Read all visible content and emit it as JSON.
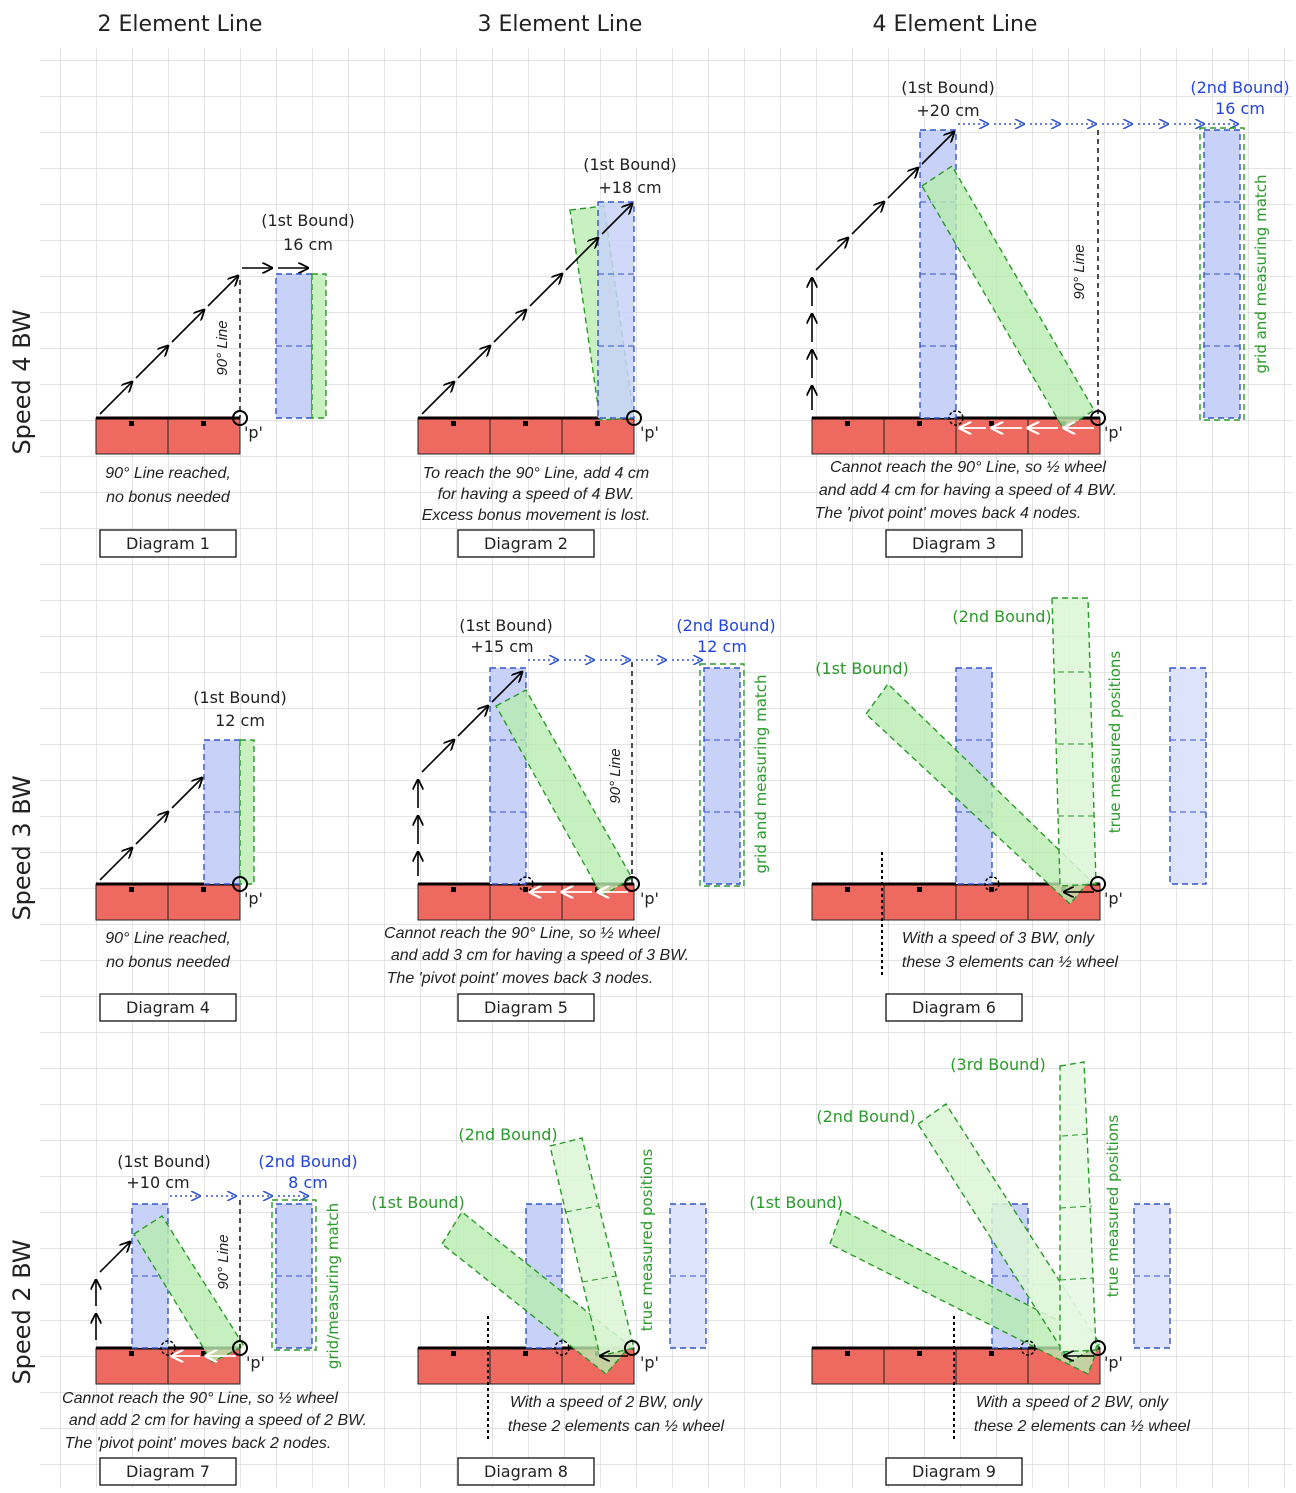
{
  "columns": {
    "c1": "2 Element Line",
    "c2": "3 Element Line",
    "c3": "4 Element Line"
  },
  "rows": {
    "r1": "Speed 4 BW",
    "r2": "Speed 3 BW",
    "r3": "Speed 2 BW"
  },
  "common": {
    "pivot": "'p'",
    "line90": "90° Line",
    "grid_match": "grid and measuring match",
    "grid_match_7": "grid/measuring match",
    "true_pos": "true measured positions"
  },
  "d1": {
    "label": "Diagram 1",
    "bound": "(1st Bound)",
    "dist": "16 cm",
    "cap1": "90° Line reached,",
    "cap2": "no bonus needed"
  },
  "d2": {
    "label": "Diagram 2",
    "bound": "(1st Bound)",
    "dist": "+18 cm",
    "cap1": "To reach the 90° Line, add  4 cm",
    "cap2": "for having a speed of 4 BW.",
    "cap3": "Excess bonus movement is lost."
  },
  "d3": {
    "label": "Diagram 3",
    "bound1": "(1st Bound)",
    "dist1": "+20 cm",
    "bound2": "(2nd Bound)",
    "dist2": "16 cm",
    "cap1": "Cannot reach the 90° Line, so ½ wheel",
    "cap2": "and add 4 cm for having a speed of 4 BW.",
    "cap3": "The 'pivot point' moves back 4 nodes."
  },
  "d4": {
    "label": "Diagram 4",
    "bound": "(1st Bound)",
    "dist": "12 cm",
    "cap1": "90° Line reached,",
    "cap2": "no bonus needed"
  },
  "d5": {
    "label": "Diagram 5",
    "bound1": "(1st Bound)",
    "dist1": "+15 cm",
    "bound2": "(2nd Bound)",
    "dist2": "12 cm",
    "cap1": "Cannot reach the 90° Line, so ½ wheel",
    "cap2": "and add 3 cm for having a speed of 3 BW.",
    "cap3": "The 'pivot point' moves back 3 nodes."
  },
  "d6": {
    "label": "Diagram 6",
    "bound1": "(1st Bound)",
    "bound2": "(2nd Bound)",
    "cap1": "With a speed of 3 BW, only",
    "cap2": "these 3 elements can ½ wheel"
  },
  "d7": {
    "label": "Diagram 7",
    "bound1": "(1st Bound)",
    "dist1": "+10 cm",
    "bound2": "(2nd Bound)",
    "dist2": "8 cm",
    "cap1": "Cannot reach the 90° Line, so ½ wheel",
    "cap2": "and add 2 cm for having a speed of 2 BW.",
    "cap3": "The 'pivot point' moves back 2 nodes."
  },
  "d8": {
    "label": "Diagram 8",
    "bound1": "(1st Bound)",
    "bound2": "(2nd Bound)",
    "cap1": "With a speed of 2 BW, only",
    "cap2": "these 2 elements can ½ wheel"
  },
  "d9": {
    "label": "Diagram 9",
    "bound1": "(1st Bound)",
    "bound2": "(2nd Bound)",
    "bound3": "(3rd Bound)",
    "cap1": "With a speed of 2 BW, only",
    "cap2": "these 2 elements can ½ wheel"
  }
}
